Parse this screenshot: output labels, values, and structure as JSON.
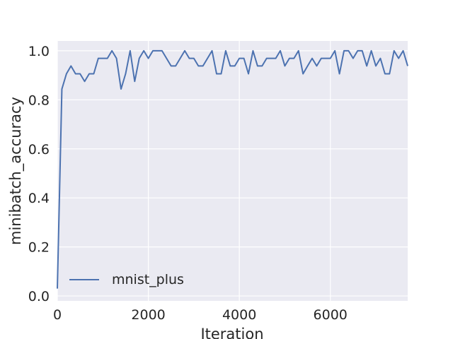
{
  "chart_data": {
    "type": "line",
    "xlabel": "Iteration",
    "ylabel": "minibatch_accuracy",
    "xlim": [
      0,
      7700
    ],
    "ylim": [
      -0.02,
      1.04
    ],
    "x_ticks": [
      0,
      2000,
      4000,
      6000
    ],
    "y_ticks": [
      0.0,
      0.2,
      0.4,
      0.6,
      0.8,
      1.0
    ],
    "x_tick_labels": [
      "0",
      "2000",
      "4000",
      "6000"
    ],
    "y_tick_labels": [
      "0.0",
      "0.2",
      "0.4",
      "0.6",
      "0.8",
      "1.0"
    ],
    "grid": true,
    "legend_position": "lower-left",
    "series": [
      {
        "name": "mnist_plus",
        "color": "#4c72b0",
        "x": [
          0,
          100,
          200,
          300,
          400,
          500,
          600,
          700,
          800,
          900,
          1000,
          1100,
          1200,
          1300,
          1400,
          1500,
          1600,
          1700,
          1800,
          1900,
          2000,
          2100,
          2200,
          2300,
          2400,
          2500,
          2600,
          2700,
          2800,
          2900,
          3000,
          3100,
          3200,
          3300,
          3400,
          3500,
          3600,
          3700,
          3800,
          3900,
          4000,
          4100,
          4200,
          4300,
          4400,
          4500,
          4600,
          4700,
          4800,
          4900,
          5000,
          5100,
          5200,
          5300,
          5400,
          5500,
          5600,
          5700,
          5800,
          5900,
          6000,
          6100,
          6200,
          6300,
          6400,
          6500,
          6600,
          6700,
          6800,
          6900,
          7000,
          7100,
          7200,
          7300,
          7400,
          7500,
          7600,
          7700
        ],
        "y": [
          0.03,
          0.844,
          0.906,
          0.938,
          0.906,
          0.906,
          0.875,
          0.906,
          0.906,
          0.969,
          0.969,
          0.969,
          1.0,
          0.969,
          0.844,
          0.906,
          1.0,
          0.875,
          0.969,
          1.0,
          0.969,
          1.0,
          1.0,
          1.0,
          0.969,
          0.938,
          0.938,
          0.969,
          1.0,
          0.969,
          0.969,
          0.938,
          0.938,
          0.969,
          1.0,
          0.906,
          0.906,
          1.0,
          0.938,
          0.938,
          0.969,
          0.969,
          0.906,
          1.0,
          0.938,
          0.938,
          0.969,
          0.969,
          0.969,
          1.0,
          0.938,
          0.969,
          0.969,
          1.0,
          0.906,
          0.938,
          0.969,
          0.938,
          0.969,
          0.969,
          0.969,
          1.0,
          0.906,
          1.0,
          1.0,
          0.969,
          1.0,
          1.0,
          0.938,
          1.0,
          0.938,
          0.969,
          0.906,
          0.906,
          1.0,
          0.969,
          1.0,
          0.938
        ]
      }
    ]
  }
}
